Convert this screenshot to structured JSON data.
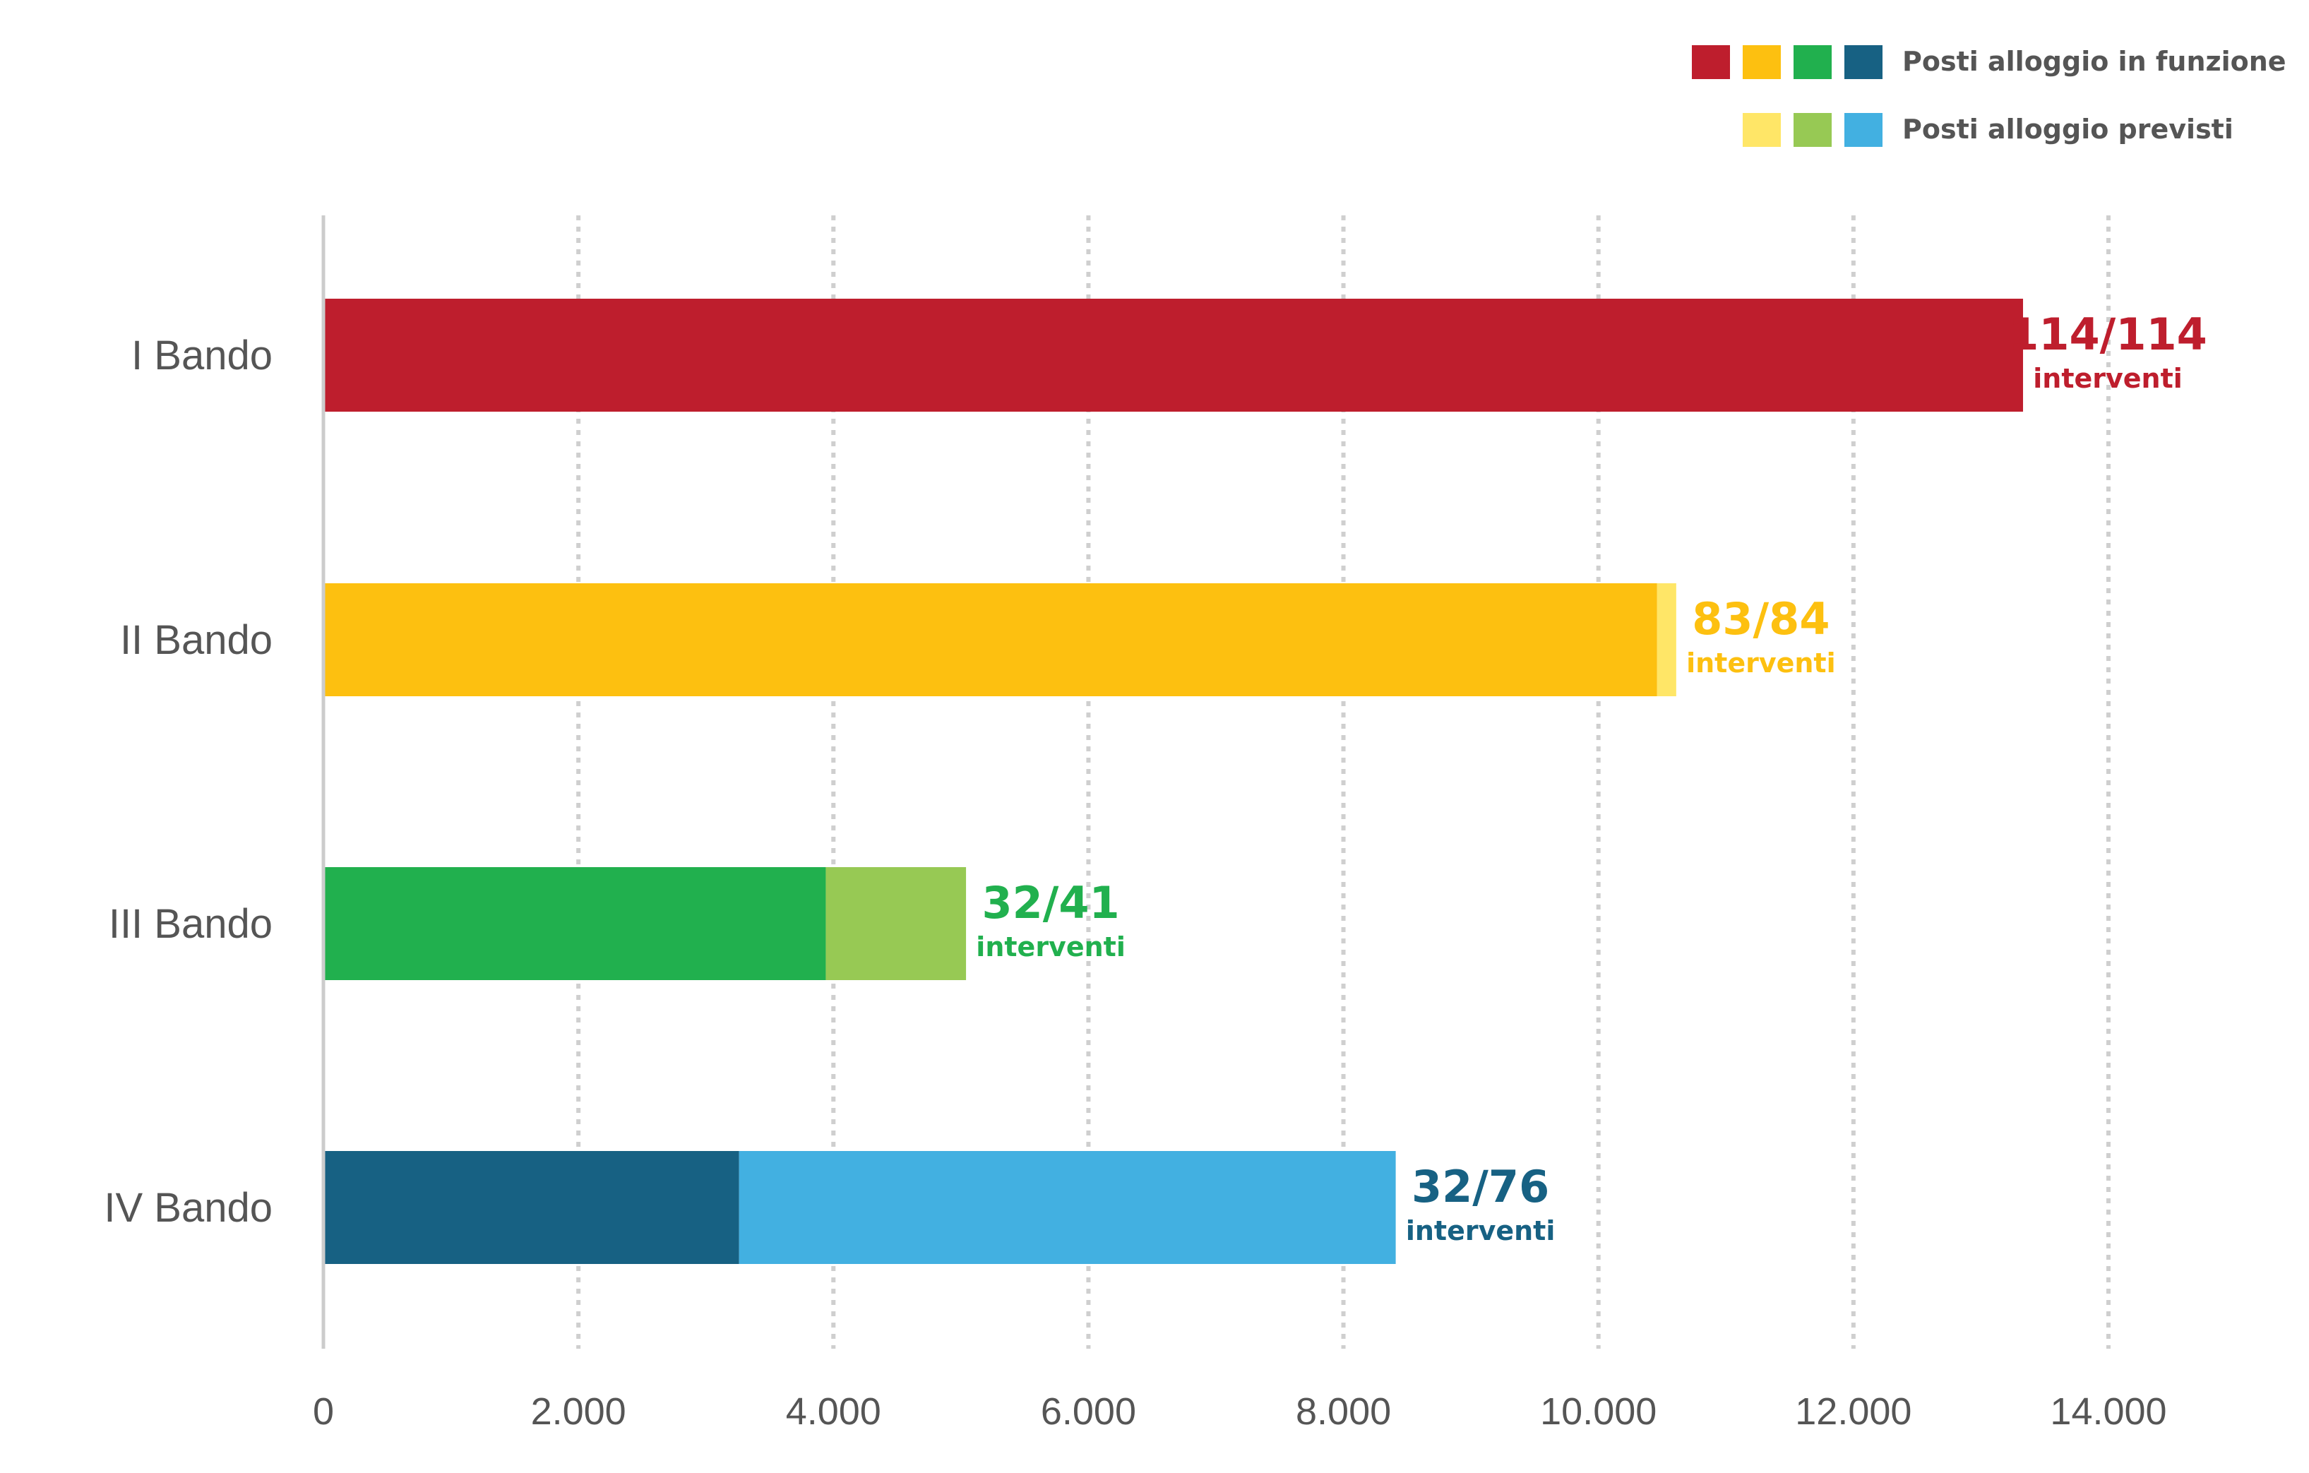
{
  "chart_data": {
    "type": "bar",
    "orientation": "horizontal",
    "stacked": true,
    "categories": [
      "I Bando",
      "II Bando",
      "III Bando",
      "IV Bando"
    ],
    "series": [
      {
        "name": "Posti alloggio in funzione",
        "values": [
          13330,
          10460,
          3940,
          3260
        ],
        "colors": [
          "#be1e2d",
          "#fdc010",
          "#21b04e",
          "#176183"
        ]
      },
      {
        "name": "Posti alloggio previsti",
        "values": [
          0,
          150,
          1100,
          5150
        ],
        "colors": [
          "#be1e2d",
          "#ffe667",
          "#97c954",
          "#42b0e1"
        ]
      }
    ],
    "annotations": [
      {
        "text": "114/114",
        "sub": "interventi",
        "color": "#be1e2d"
      },
      {
        "text": "83/84",
        "sub": "interventi",
        "color": "#fdc010"
      },
      {
        "text": "32/41",
        "sub": "interventi",
        "color": "#21b04e"
      },
      {
        "text": "32/76",
        "sub": "interventi",
        "color": "#176183"
      }
    ],
    "xlim": [
      0,
      14000
    ],
    "xticks": [
      0,
      2000,
      4000,
      6000,
      8000,
      10000,
      12000,
      14000
    ],
    "xtick_labels": [
      "0",
      "2.000",
      "4.000",
      "6.000",
      "8.000",
      "10.000",
      "12.000",
      "14.000"
    ],
    "grid": "vertical-dotted",
    "legend": {
      "placement": "top-right",
      "rows": [
        {
          "label": "Posti alloggio in funzione",
          "swatches": [
            "#be1e2d",
            "#fdc010",
            "#21b04e",
            "#176183"
          ]
        },
        {
          "label": "Posti alloggio previsti",
          "swatches": [
            "#ffe667",
            "#97c954",
            "#42b0e1"
          ]
        }
      ]
    },
    "title": "",
    "xlabel": "",
    "ylabel": ""
  }
}
